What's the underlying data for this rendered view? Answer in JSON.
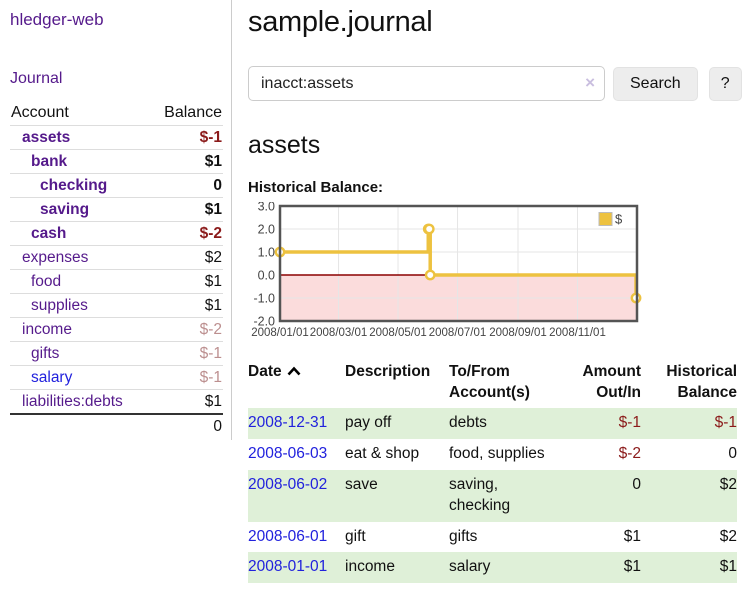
{
  "colors": {
    "link_visited": "#551a8b",
    "link_new": "#2121dd",
    "negative": "#8b1a1a",
    "negative_muted": "#bc8f8f",
    "row_green": "#dff0d8",
    "chart_line": "#edc240",
    "chart_negative_region": "#fbdcdc",
    "chart_zero_line": "#8b0000",
    "chart_border": "#545454"
  },
  "app": {
    "brand": "hledger-web",
    "nav": {
      "journal": "Journal"
    }
  },
  "sidebar": {
    "header": {
      "account": "Account",
      "balance": "Balance"
    },
    "accounts": [
      {
        "name": "assets",
        "balance": "$-1"
      },
      {
        "name": "bank",
        "balance": "$1"
      },
      {
        "name": "checking",
        "balance": "0"
      },
      {
        "name": "saving",
        "balance": "$1"
      },
      {
        "name": "cash",
        "balance": "$-2"
      },
      {
        "name": "expenses",
        "balance": "$2"
      },
      {
        "name": "food",
        "balance": "$1"
      },
      {
        "name": "supplies",
        "balance": "$1"
      },
      {
        "name": "income",
        "balance": "$-2"
      },
      {
        "name": "gifts",
        "balance": "$-1"
      },
      {
        "name": "salary",
        "balance": "$-1"
      },
      {
        "name": "liabilities:debts",
        "balance": "$1"
      }
    ],
    "total": "0"
  },
  "main": {
    "title": "sample.journal",
    "search": {
      "value": "inacct:assets",
      "clear": "×",
      "button": "Search",
      "help": "?"
    },
    "account_heading": "assets",
    "chart_title": "Historical Balance:"
  },
  "chart_data": {
    "type": "line",
    "step": true,
    "title": "Historical Balance:",
    "series": [
      {
        "name": "$",
        "color": "#edc240",
        "points": [
          {
            "date": "2008-01-01",
            "value": 1
          },
          {
            "date": "2008-06-01",
            "value": 2
          },
          {
            "date": "2008-06-02",
            "value": 2
          },
          {
            "date": "2008-06-03",
            "value": 0
          },
          {
            "date": "2008-12-31",
            "value": -1
          }
        ]
      }
    ],
    "xlim": [
      "2008-01-01",
      "2009-01-01"
    ],
    "ylim": [
      -2,
      3
    ],
    "x_ticks": [
      {
        "date": "2008-01-01",
        "label": "2008/01/01"
      },
      {
        "date": "2008-03-01",
        "label": "2008/03/01"
      },
      {
        "date": "2008-05-01",
        "label": "2008/05/01"
      },
      {
        "date": "2008-07-01",
        "label": "2008/07/01"
      },
      {
        "date": "2008-09-01",
        "label": "2008/09/01"
      },
      {
        "date": "2008-11-01",
        "label": "2008/11/01"
      }
    ],
    "y_ticks": [
      {
        "value": 3,
        "label": "3.0"
      },
      {
        "value": 2,
        "label": "2.0"
      },
      {
        "value": 1,
        "label": "1.0"
      },
      {
        "value": 0,
        "label": "0.0"
      },
      {
        "value": -1,
        "label": "-1.0"
      },
      {
        "value": -2,
        "label": "-2.0"
      }
    ],
    "grid": true,
    "legend_position": "top-right",
    "negative_region": true
  },
  "register": {
    "headers": {
      "date": "Date",
      "description": "Description",
      "tofrom": "To/From Account(s)",
      "amount": "Amount Out/In",
      "balance": "Historical Balance"
    },
    "rows": [
      {
        "date": "2008-12-31",
        "description": "pay off",
        "accounts": "debts",
        "amount": "$-1",
        "balance": "$-1"
      },
      {
        "date": "2008-06-03",
        "description": "eat & shop",
        "accounts": "food, supplies",
        "amount": "$-2",
        "balance": "0"
      },
      {
        "date": "2008-06-02",
        "description": "save",
        "accounts": "saving, checking",
        "amount": "0",
        "balance": "$2"
      },
      {
        "date": "2008-06-01",
        "description": "gift",
        "accounts": "gifts",
        "amount": "$1",
        "balance": "$2"
      },
      {
        "date": "2008-01-01",
        "description": "income",
        "accounts": "salary",
        "amount": "$1",
        "balance": "$1"
      }
    ]
  }
}
